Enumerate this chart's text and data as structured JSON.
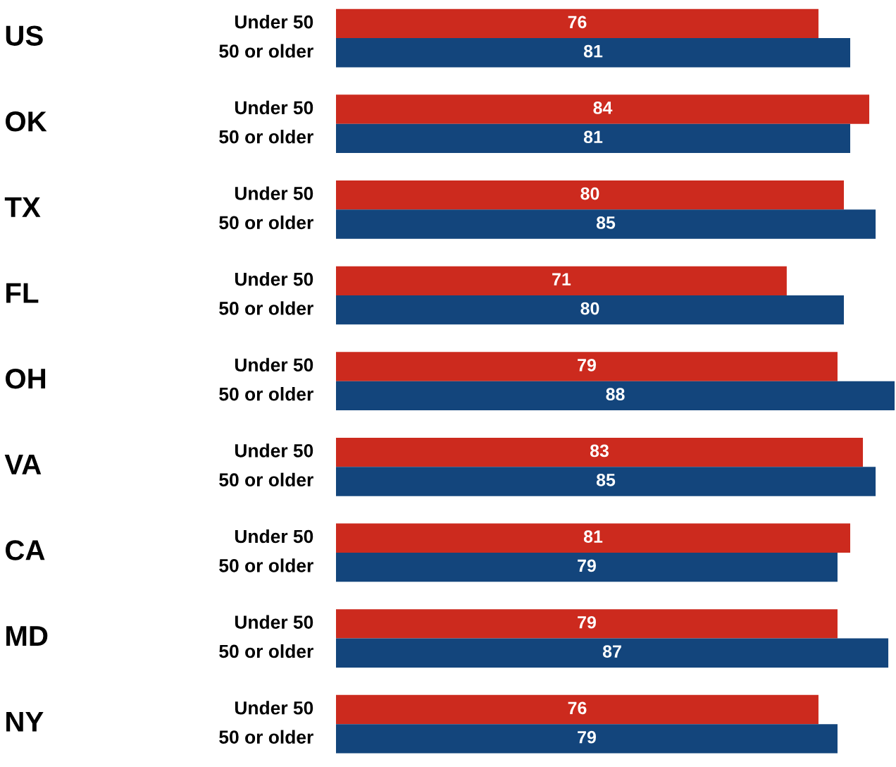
{
  "chart_data": {
    "type": "bar",
    "orientation": "horizontal",
    "data_labels": true,
    "categories": [
      "US",
      "OK",
      "TX",
      "FL",
      "OH",
      "VA",
      "CA",
      "MD",
      "NY"
    ],
    "series": [
      {
        "name": "Under 50",
        "color": "#cc2a1e",
        "values": [
          76,
          84,
          80,
          71,
          79,
          83,
          81,
          79,
          76
        ]
      },
      {
        "name": "50 or older",
        "color": "#13457c",
        "values": [
          81,
          81,
          85,
          80,
          88,
          85,
          79,
          87,
          79
        ]
      }
    ]
  }
}
